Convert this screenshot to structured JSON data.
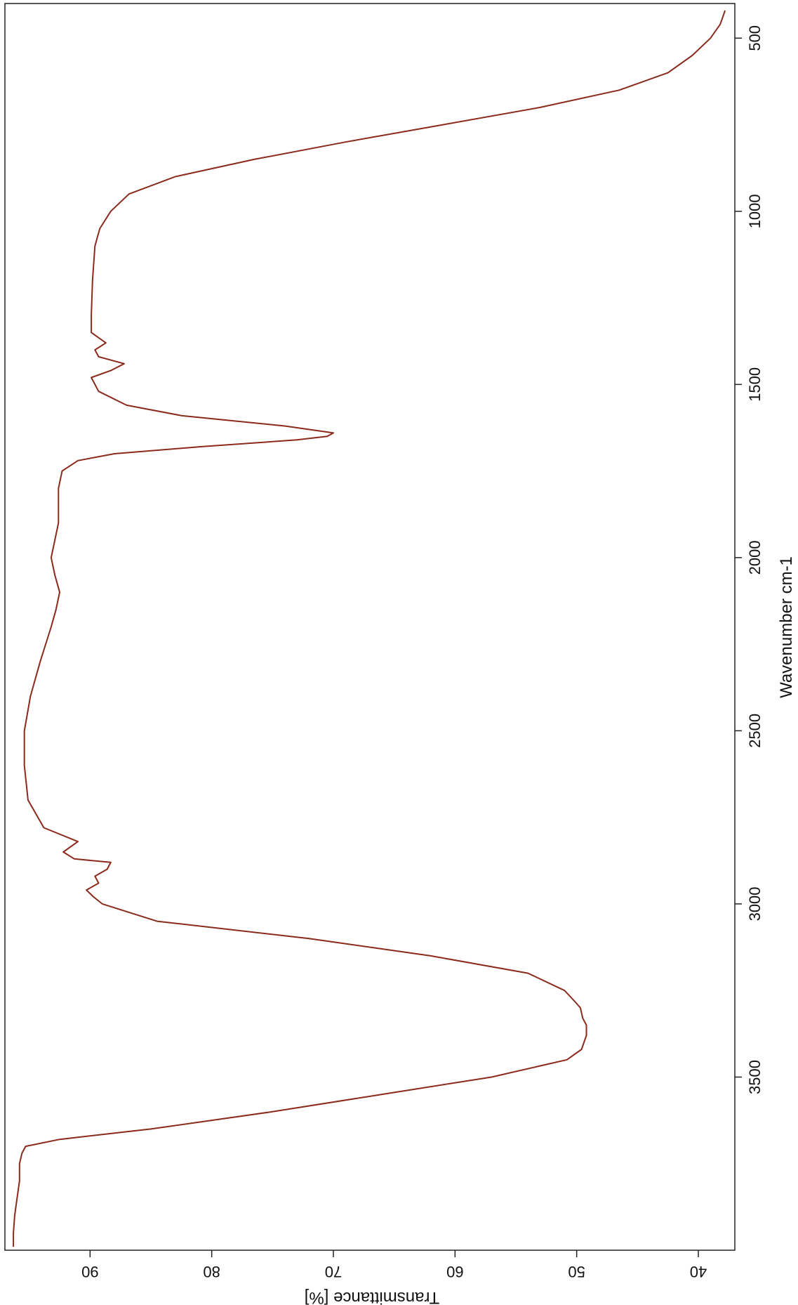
{
  "chart_data": {
    "type": "line",
    "title": "",
    "xlabel": "Wavenumber cm-1",
    "ylabel": "Transmittance [%]",
    "x_reversed": true,
    "xlim": [
      400,
      4000
    ],
    "ylim": [
      37,
      97
    ],
    "x_ticks": [
      500,
      1000,
      1500,
      2000,
      2500,
      3000,
      3500
    ],
    "y_ticks": [
      40,
      50,
      60,
      70,
      80,
      90
    ],
    "grid": false,
    "legend": "none",
    "line_color": "#8b2a1c",
    "series": [
      {
        "x": [
          420,
          460,
          500,
          550,
          600,
          650,
          700,
          750,
          800,
          850,
          900,
          950,
          1000,
          1050,
          1100,
          1200,
          1300,
          1350,
          1380,
          1400,
          1420,
          1440,
          1460,
          1480,
          1520,
          1560,
          1590,
          1620,
          1640,
          1650,
          1660,
          1680,
          1700,
          1720,
          1750,
          1800,
          1900,
          2000,
          2050,
          2100,
          2150,
          2200,
          2300,
          2400,
          2500,
          2600,
          2700,
          2780,
          2820,
          2850,
          2870,
          2880,
          2900,
          2920,
          2940,
          2960,
          2980,
          3000,
          3050,
          3100,
          3150,
          3200,
          3250,
          3280,
          3300,
          3330,
          3350,
          3380,
          3420,
          3450,
          3500,
          3550,
          3600,
          3650,
          3680,
          3700,
          3720,
          3750,
          3800,
          3850,
          3900,
          3950,
          3990
        ],
        "y": [
          37.8,
          38.2,
          39.0,
          40.5,
          42.5,
          46.5,
          53.0,
          61.0,
          69.0,
          76.5,
          83.0,
          86.8,
          88.3,
          89.2,
          89.6,
          89.8,
          89.9,
          89.9,
          88.7,
          89.6,
          89.3,
          87.2,
          88.3,
          89.9,
          89.3,
          87.0,
          82.5,
          74.0,
          70.0,
          70.5,
          73.0,
          81.0,
          88.0,
          91.0,
          92.3,
          92.6,
          92.6,
          93.2,
          92.9,
          92.5,
          92.8,
          93.2,
          94.1,
          94.9,
          95.4,
          95.4,
          95.1,
          93.8,
          91.0,
          92.2,
          91.3,
          88.3,
          88.6,
          89.6,
          89.3,
          90.3,
          89.7,
          89.0,
          84.5,
          72.0,
          62.0,
          54.0,
          51.0,
          50.2,
          49.7,
          49.5,
          49.2,
          49.2,
          49.6,
          50.8,
          57.0,
          66.0,
          75.0,
          85.0,
          92.5,
          95.3,
          95.6,
          95.8,
          95.8,
          96.0,
          96.2,
          96.3,
          96.3
        ]
      }
    ]
  }
}
